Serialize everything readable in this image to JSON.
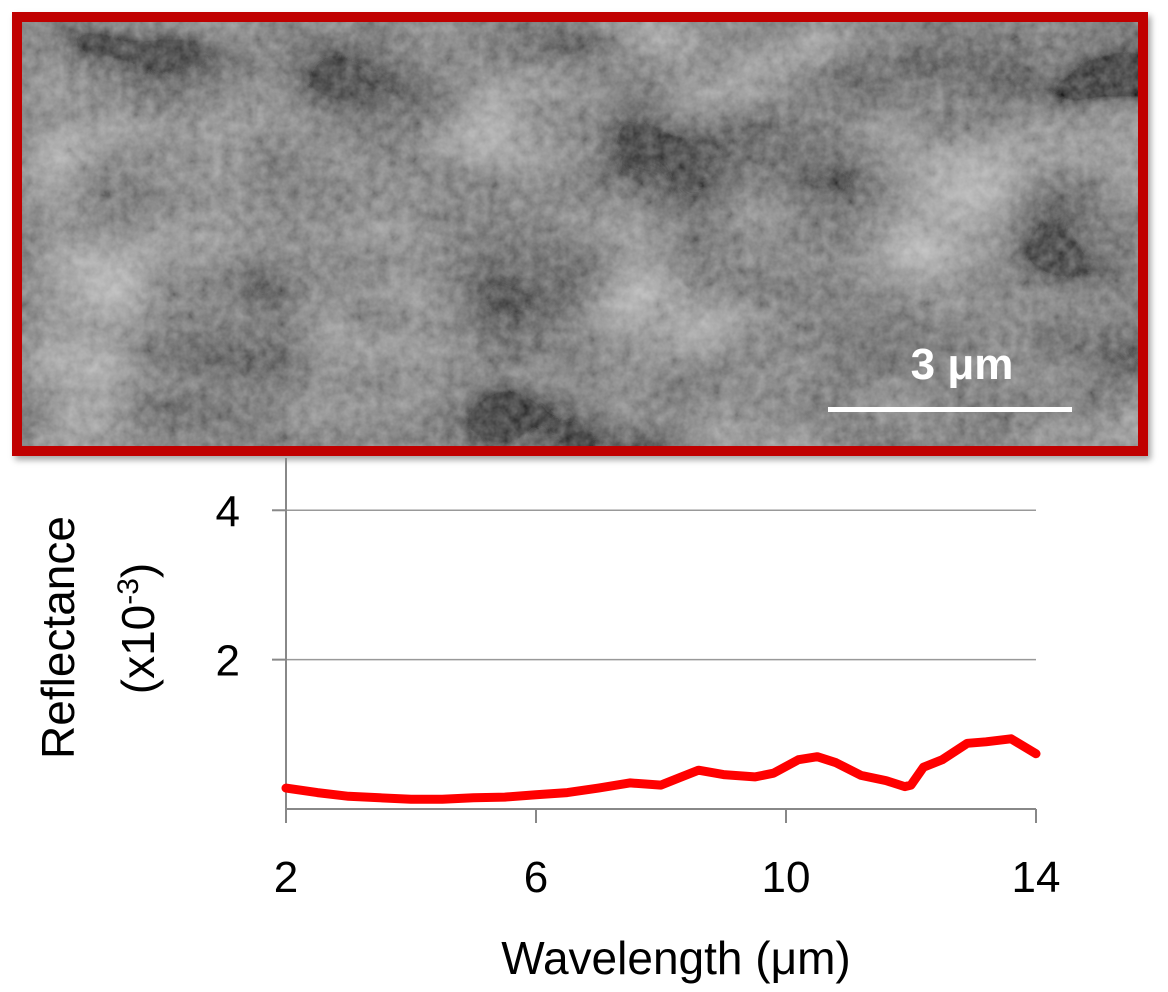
{
  "figure": {
    "scale_bar_label": "3 μm",
    "frame_color": "#c00000"
  },
  "chart_data": {
    "type": "line",
    "xlabel": "Wavelength (μm)",
    "ylabel": "Reflectance",
    "ylabel_unit": "(x10",
    "ylabel_exp": "-3",
    "ylabel_close": ")",
    "xlim": [
      2,
      14
    ],
    "ylim": [
      0,
      4.7
    ],
    "xticks": [
      2,
      6,
      10,
      14
    ],
    "yticks": [
      2,
      4
    ],
    "grid": true,
    "series": [
      {
        "color": "#ff0000",
        "x": [
          2,
          2.5,
          3,
          3.5,
          4,
          4.5,
          5,
          5.5,
          6,
          6.5,
          7,
          7.5,
          8,
          8.3,
          8.6,
          9,
          9.5,
          9.8,
          10.2,
          10.5,
          10.8,
          11.2,
          11.6,
          11.9,
          12.0,
          12.2,
          12.5,
          12.9,
          13.2,
          13.6,
          14
        ],
        "y": [
          0.28,
          0.22,
          0.17,
          0.15,
          0.13,
          0.13,
          0.15,
          0.16,
          0.19,
          0.22,
          0.28,
          0.35,
          0.32,
          0.42,
          0.52,
          0.46,
          0.43,
          0.48,
          0.66,
          0.7,
          0.62,
          0.45,
          0.38,
          0.3,
          0.32,
          0.56,
          0.66,
          0.88,
          0.9,
          0.94,
          0.74
        ]
      }
    ]
  }
}
